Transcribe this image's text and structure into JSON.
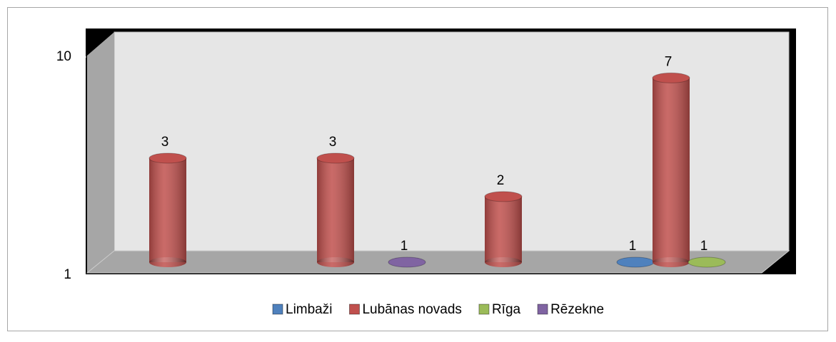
{
  "chart_data": {
    "type": "bar",
    "log_scale": true,
    "legend": "bottom",
    "grid": false,
    "categories": [
      null,
      null,
      null,
      null
    ],
    "series": [
      {
        "name": "Limbaži",
        "color": "#4f81bd",
        "values": [
          null,
          null,
          null,
          1
        ]
      },
      {
        "name": "Lubānas novads",
        "color": "#c0504d",
        "values": [
          3,
          3,
          2,
          7
        ]
      },
      {
        "name": "Rīga",
        "color": "#9bbb59",
        "values": [
          null,
          null,
          null,
          1
        ]
      },
      {
        "name": "Rēzekne",
        "color": "#8064a2",
        "values": [
          null,
          1,
          null,
          null
        ]
      }
    ],
    "ylim": [
      1,
      10
    ],
    "yticks": [
      1,
      10
    ]
  }
}
